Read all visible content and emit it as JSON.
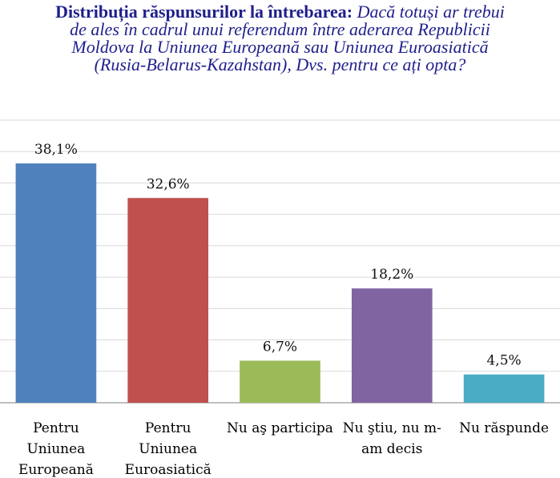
{
  "title": {
    "bold": "Distribuția răspunsurilor la întrebarea:",
    "italic_lines": [
      "Dacă totuși ar trebui",
      "de ales în cadrul unui referendum între aderarea Republicii",
      "Moldova la Uniunea Europeană sau Uniunea Euroasiatică",
      "(Rusia-Belarus-Kazahstan), Dvs. pentru ce ați opta?"
    ]
  },
  "colors": {
    "title": "#1f1f8c",
    "grid": "#d9d9d9",
    "axis": "#7f7f7f"
  },
  "chart_data": {
    "type": "bar",
    "categories": [
      [
        "Pentru",
        "Uniunea",
        "Europeană"
      ],
      [
        "Pentru",
        "Uniunea",
        "Euroasiatică"
      ],
      [
        "Nu aş participa"
      ],
      [
        "Nu ştiu, nu m-",
        "am decis"
      ],
      [
        "Nu răspunde"
      ]
    ],
    "values": [
      38.1,
      32.6,
      6.7,
      18.2,
      4.5
    ],
    "data_labels": [
      "38,1%",
      "32,6%",
      "6,7%",
      "18,2%",
      "4,5%"
    ],
    "colors": [
      "#4f81bd",
      "#c0504d",
      "#9bbb59",
      "#8064a2",
      "#4bacc6"
    ],
    "ylim": [
      0,
      45
    ],
    "grid": true,
    "xlabel": "",
    "ylabel": ""
  }
}
